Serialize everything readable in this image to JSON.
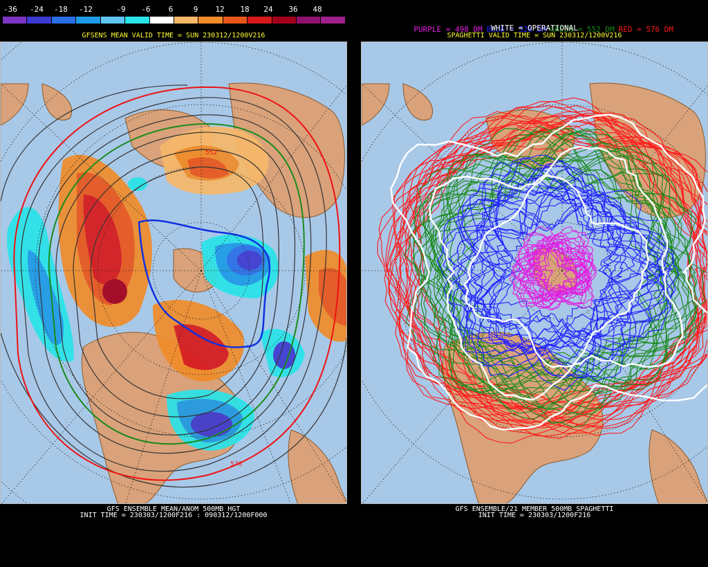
{
  "left": {
    "colorbar": {
      "labels": [
        "-36",
        "-24",
        "-18",
        "-12",
        "-9",
        "-6",
        "6",
        "9",
        "12",
        "18",
        "24",
        "36",
        "48"
      ],
      "colors": [
        "#7c34c4",
        "#3d3ad0",
        "#2a6fe6",
        "#1e9be6",
        "#5ec6f2",
        "#29e4e8",
        "#ffffff",
        "#f7b86a",
        "#f08c2a",
        "#e8561a",
        "#d7191c",
        "#a3001a",
        "#90126e",
        "#a0208c"
      ]
    },
    "title": "GFSENS MEAN VALID TIME = SUN 230312/1200V216",
    "footer_line1": "GFS ENSEMBLE MEAN/ANOM 500MB HGT",
    "footer_line2": "INIT TIME = 230303/1200F216 : 090312/1200F000",
    "contour_labels": [
      "552",
      "576"
    ]
  },
  "right": {
    "legend": {
      "purple": "PURPLE = 498 DM",
      "blue": "BLUE = 528 DM",
      "green": "GREEN = 552 DM",
      "red": "RED = 576 DM",
      "white": "WHITE = OPERATIONAL"
    },
    "legend_colors": {
      "purple": "#e020e0",
      "blue": "#2020ff",
      "green": "#1a8a1a",
      "red": "#ff1a1a",
      "white": "#ffffff"
    },
    "title": "SPAGHETTI VALID TIME = SUN 230312/1200V216",
    "footer_line1": "GFS ENSEMBLE/21 MEMBER 500MB SPAGHETTI",
    "footer_line2": "INIT TIME = 230303/1200F216"
  },
  "colors": {
    "ocean": "#a8c8e8",
    "land": "#d9a27a",
    "coast": "#8b5a2b",
    "grid": "#333333"
  }
}
